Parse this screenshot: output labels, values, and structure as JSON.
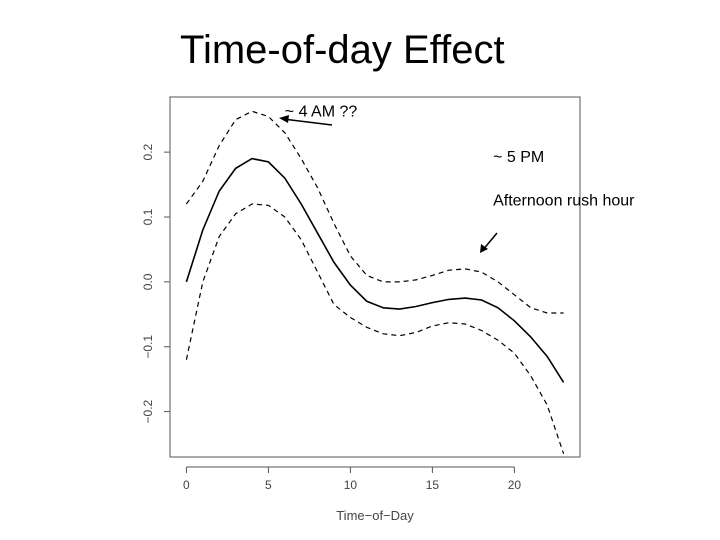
{
  "slide": {
    "title": "Time-of-day Effect"
  },
  "chart_data": {
    "type": "line",
    "title": "",
    "xlabel": "Time−of−Day",
    "ylabel": "",
    "xlim": [
      -1,
      24
    ],
    "ylim": [
      -0.27,
      0.285
    ],
    "x_ticks": [
      0,
      5,
      10,
      15,
      20
    ],
    "y_ticks": [
      -0.2,
      -0.1,
      0.0,
      0.1,
      0.2
    ],
    "y_tick_labels": [
      "−0.2",
      "−0.1",
      "0.0",
      "0.1",
      "0.2"
    ],
    "series": [
      {
        "name": "",
        "style": "solid",
        "x": [
          0,
          1,
          2,
          3,
          4,
          5,
          6,
          7,
          8,
          9,
          10,
          11,
          12,
          13,
          14,
          15,
          16,
          17,
          18,
          19,
          20,
          21,
          22,
          23
        ],
        "y": [
          0.0,
          0.08,
          0.14,
          0.175,
          0.19,
          0.185,
          0.16,
          0.12,
          0.075,
          0.03,
          -0.005,
          -0.03,
          -0.04,
          -0.042,
          -0.038,
          -0.032,
          -0.027,
          -0.025,
          -0.028,
          -0.04,
          -0.06,
          -0.085,
          -0.115,
          -0.155
        ]
      },
      {
        "name": "",
        "style": "dashed",
        "x": [
          0,
          1,
          2,
          3,
          4,
          5,
          6,
          7,
          8,
          9,
          10,
          11,
          12,
          13,
          14,
          15,
          16,
          17,
          18,
          19,
          20,
          21,
          22,
          23
        ],
        "y": [
          0.12,
          0.155,
          0.21,
          0.25,
          0.263,
          0.255,
          0.23,
          0.19,
          0.145,
          0.09,
          0.04,
          0.01,
          0.0,
          0.0,
          0.003,
          0.01,
          0.018,
          0.02,
          0.015,
          0.0,
          -0.02,
          -0.04,
          -0.048,
          -0.048
        ]
      },
      {
        "name": "",
        "style": "dashed",
        "x": [
          0,
          1,
          2,
          3,
          4,
          5,
          6,
          7,
          8,
          9,
          10,
          11,
          12,
          13,
          14,
          15,
          16,
          17,
          18,
          19,
          20,
          21,
          22,
          23
        ],
        "y": [
          -0.12,
          0.0,
          0.07,
          0.105,
          0.12,
          0.118,
          0.1,
          0.065,
          0.015,
          -0.035,
          -0.055,
          -0.07,
          -0.08,
          -0.083,
          -0.078,
          -0.068,
          -0.063,
          -0.065,
          -0.075,
          -0.09,
          -0.11,
          -0.145,
          -0.19,
          -0.265
        ]
      }
    ],
    "annotations": [
      {
        "text": "~ 4 AM ??",
        "x": 6,
        "y": 0.255
      },
      {
        "text": "~ 5 PM",
        "x": 18.7,
        "y": 0.185
      },
      {
        "text": "Afternoon rush hour",
        "x": 18.7,
        "y": 0.118
      }
    ]
  }
}
